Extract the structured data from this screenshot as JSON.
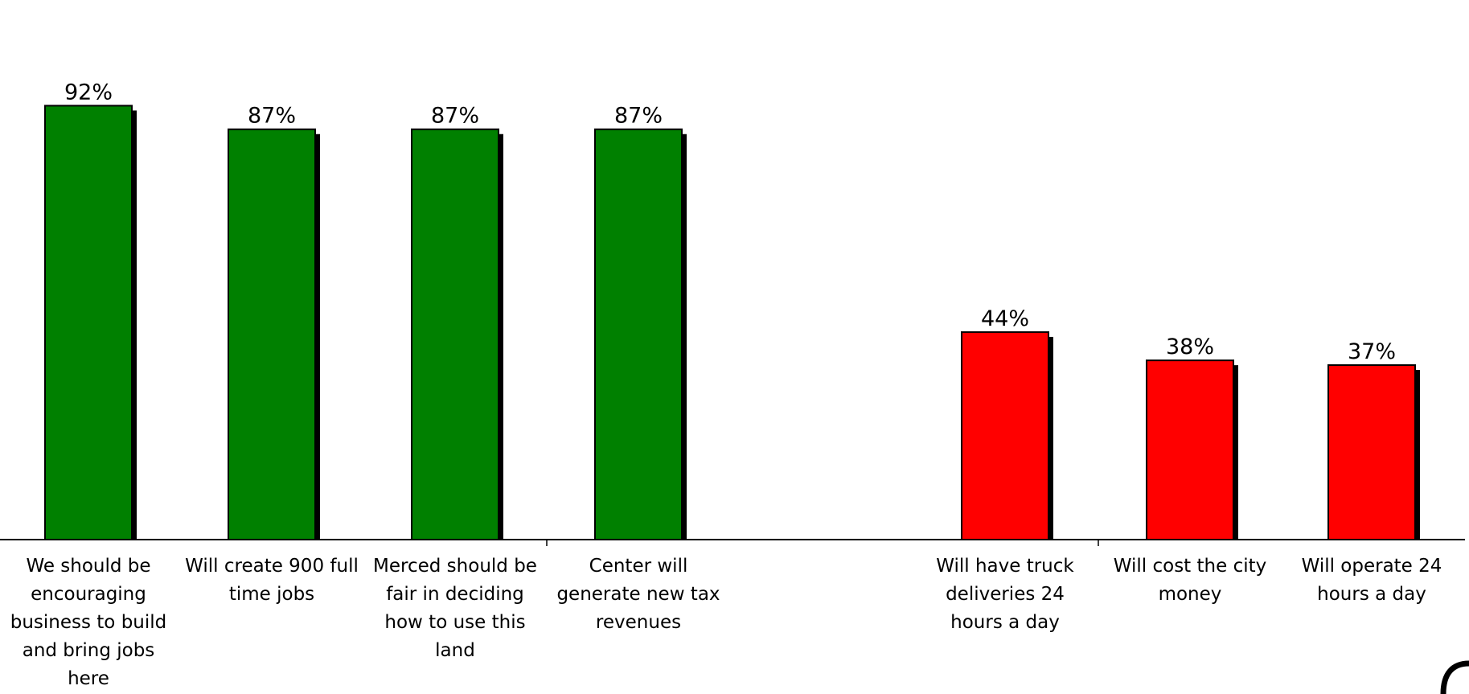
{
  "chart_data": {
    "type": "bar",
    "title": "",
    "xlabel": "",
    "ylabel": "",
    "ylim": [
      0,
      100
    ],
    "grid": false,
    "legend": "none",
    "value_suffix": "%",
    "categories": [
      "We should be encouraging business to build and bring jobs here",
      "Will create 900 full time jobs",
      "Merced should be fair in deciding how to use this land",
      "Center will generate new tax revenues",
      "Will have truck deliveries 24 hours a day",
      "Will cost the city money",
      "Will operate 24 hours a day"
    ],
    "category_lines": [
      [
        "We should be",
        "encouraging",
        "business to build",
        "and bring jobs",
        "here"
      ],
      [
        "Will create 900 full",
        "time jobs"
      ],
      [
        "Merced should be",
        "fair in deciding",
        "how to use this",
        "land"
      ],
      [
        "Center will",
        "generate new tax",
        "revenues"
      ],
      [
        "Will have truck",
        "deliveries 24",
        "hours a day"
      ],
      [
        "Will cost the city",
        "money"
      ],
      [
        "Will operate 24",
        "hours a day"
      ]
    ],
    "values": [
      92,
      87,
      87,
      87,
      44,
      38,
      37
    ],
    "groups": [
      {
        "color": "#008000",
        "members": [
          0,
          1,
          2,
          3
        ]
      },
      {
        "color": "#ff0000",
        "members": [
          4,
          5,
          6
        ]
      }
    ],
    "shadow_color": "#000000"
  }
}
